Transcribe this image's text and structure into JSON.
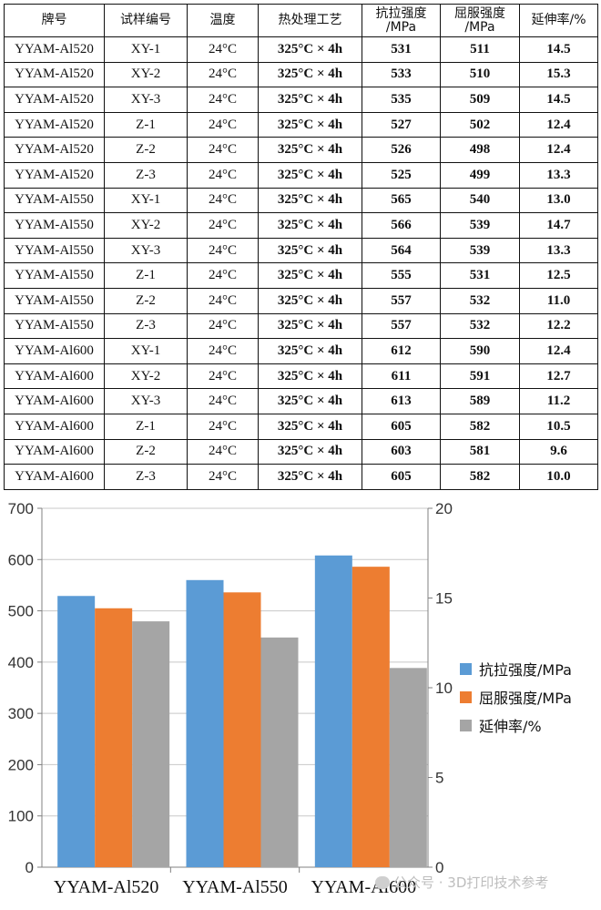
{
  "table": {
    "headers": [
      "牌号",
      "试样编号",
      "温度",
      "热处理工艺",
      "抗拉强度\n/MPa",
      "屈服强度\n/MPa",
      "延伸率/%"
    ],
    "rows": [
      [
        "YYAM-Al520",
        "XY-1",
        "24°C",
        "325°C × 4h",
        "531",
        "511",
        "14.5"
      ],
      [
        "YYAM-Al520",
        "XY-2",
        "24°C",
        "325°C × 4h",
        "533",
        "510",
        "15.3"
      ],
      [
        "YYAM-Al520",
        "XY-3",
        "24°C",
        "325°C × 4h",
        "535",
        "509",
        "14.5"
      ],
      [
        "YYAM-Al520",
        "Z-1",
        "24°C",
        "325°C × 4h",
        "527",
        "502",
        "12.4"
      ],
      [
        "YYAM-Al520",
        "Z-2",
        "24°C",
        "325°C × 4h",
        "526",
        "498",
        "12.4"
      ],
      [
        "YYAM-Al520",
        "Z-3",
        "24°C",
        "325°C × 4h",
        "525",
        "499",
        "13.3"
      ],
      [
        "YYAM-Al550",
        "XY-1",
        "24°C",
        "325°C × 4h",
        "565",
        "540",
        "13.0"
      ],
      [
        "YYAM-Al550",
        "XY-2",
        "24°C",
        "325°C × 4h",
        "566",
        "539",
        "14.7"
      ],
      [
        "YYAM-Al550",
        "XY-3",
        "24°C",
        "325°C × 4h",
        "564",
        "539",
        "13.3"
      ],
      [
        "YYAM-Al550",
        "Z-1",
        "24°C",
        "325°C × 4h",
        "555",
        "531",
        "12.5"
      ],
      [
        "YYAM-Al550",
        "Z-2",
        "24°C",
        "325°C × 4h",
        "557",
        "532",
        "11.0"
      ],
      [
        "YYAM-Al550",
        "Z-3",
        "24°C",
        "325°C × 4h",
        "557",
        "532",
        "12.2"
      ],
      [
        "YYAM-Al600",
        "XY-1",
        "24°C",
        "325°C × 4h",
        "612",
        "590",
        "12.4"
      ],
      [
        "YYAM-Al600",
        "XY-2",
        "24°C",
        "325°C × 4h",
        "611",
        "591",
        "12.7"
      ],
      [
        "YYAM-Al600",
        "XY-3",
        "24°C",
        "325°C × 4h",
        "613",
        "589",
        "11.2"
      ],
      [
        "YYAM-Al600",
        "Z-1",
        "24°C",
        "325°C × 4h",
        "605",
        "582",
        "10.5"
      ],
      [
        "YYAM-Al600",
        "Z-2",
        "24°C",
        "325°C × 4h",
        "603",
        "581",
        "9.6"
      ],
      [
        "YYAM-Al600",
        "Z-3",
        "24°C",
        "325°C × 4h",
        "605",
        "582",
        "10.0"
      ]
    ]
  },
  "chart_data": {
    "type": "bar",
    "categories": [
      "YYAM-Al520",
      "YYAM-Al550",
      "YYAM-Al600"
    ],
    "series": [
      {
        "name": "抗拉强度/MPa",
        "values": [
          529,
          560,
          608
        ],
        "axis": "left",
        "color": "#5b9bd5"
      },
      {
        "name": "屈服强度/MPa",
        "values": [
          505,
          536,
          586
        ],
        "axis": "left",
        "color": "#ed7d31"
      },
      {
        "name": "延伸率/%",
        "values": [
          13.7,
          12.8,
          11.1
        ],
        "axis": "right",
        "color": "#a5a5a5"
      }
    ],
    "ylim": [
      0,
      700
    ],
    "yticks": [
      "0",
      "100",
      "200",
      "300",
      "400",
      "500",
      "600",
      "700"
    ],
    "y2lim": [
      0,
      20
    ],
    "y2ticks": [
      "0",
      "5",
      "10",
      "15",
      "20"
    ],
    "legend_position": "right",
    "grid": true
  },
  "watermark": "公众号 · 3D打印技术参考"
}
